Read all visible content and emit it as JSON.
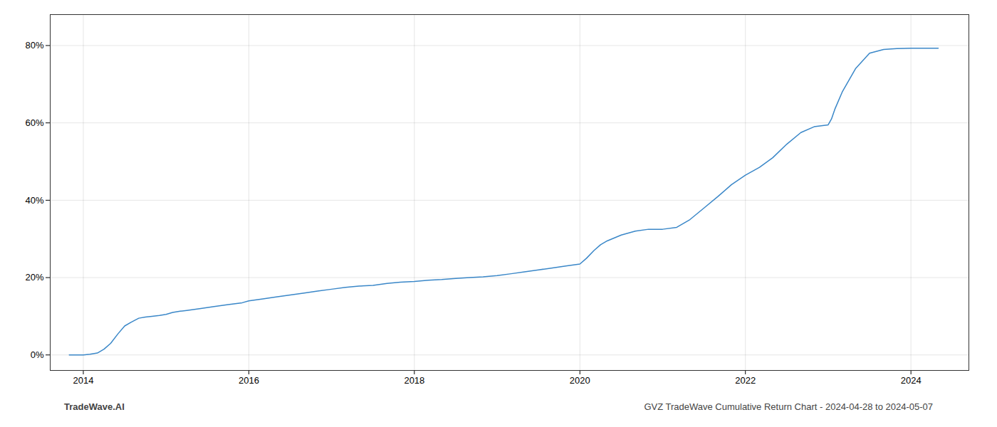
{
  "chart_data": {
    "type": "line",
    "x": [
      2013.83,
      2013.92,
      2014.0,
      2014.08,
      2014.17,
      2014.25,
      2014.33,
      2014.42,
      2014.5,
      2014.58,
      2014.67,
      2014.75,
      2014.83,
      2014.92,
      2015.0,
      2015.08,
      2015.17,
      2015.25,
      2015.42,
      2015.58,
      2015.75,
      2015.92,
      2016.0,
      2016.17,
      2016.33,
      2016.5,
      2016.67,
      2016.83,
      2017.0,
      2017.17,
      2017.33,
      2017.5,
      2017.67,
      2017.83,
      2018.0,
      2018.17,
      2018.33,
      2018.5,
      2018.67,
      2018.83,
      2019.0,
      2019.17,
      2019.33,
      2019.5,
      2019.67,
      2019.83,
      2020.0,
      2020.08,
      2020.17,
      2020.25,
      2020.33,
      2020.5,
      2020.67,
      2020.83,
      2021.0,
      2021.17,
      2021.33,
      2021.5,
      2021.67,
      2021.83,
      2022.0,
      2022.17,
      2022.33,
      2022.5,
      2022.67,
      2022.83,
      2023.0,
      2023.04,
      2023.08,
      2023.17,
      2023.33,
      2023.5,
      2023.67,
      2023.83,
      2024.0,
      2024.17,
      2024.33
    ],
    "values": [
      0.0,
      0.0,
      0.0,
      0.2,
      0.5,
      1.5,
      3.0,
      5.5,
      7.5,
      8.5,
      9.5,
      9.8,
      10.0,
      10.2,
      10.5,
      11.0,
      11.3,
      11.5,
      12.0,
      12.5,
      13.0,
      13.5,
      14.0,
      14.5,
      15.0,
      15.5,
      16.0,
      16.5,
      17.0,
      17.5,
      17.8,
      18.0,
      18.5,
      18.8,
      19.0,
      19.3,
      19.5,
      19.8,
      20.0,
      20.2,
      20.5,
      21.0,
      21.5,
      22.0,
      22.5,
      23.0,
      23.5,
      25.0,
      27.0,
      28.5,
      29.5,
      31.0,
      32.0,
      32.5,
      32.5,
      33.0,
      35.0,
      38.0,
      41.0,
      44.0,
      46.5,
      48.5,
      51.0,
      54.5,
      57.5,
      59.0,
      59.5,
      61.0,
      63.5,
      68.0,
      74.0,
      78.0,
      79.0,
      79.2,
      79.3,
      79.3,
      79.3
    ],
    "color": "#3a87c8",
    "xlim": [
      2013.6,
      2024.7
    ],
    "ylim": [
      -4,
      88
    ],
    "xticks": [
      2014,
      2016,
      2018,
      2020,
      2022,
      2024
    ],
    "yticks": [
      {
        "value": 0,
        "label": "0%"
      },
      {
        "value": 20,
        "label": "20%"
      },
      {
        "value": 40,
        "label": "40%"
      },
      {
        "value": 60,
        "label": "60%"
      },
      {
        "value": 80,
        "label": "80%"
      }
    ],
    "grid": true,
    "annotations": [
      "TradeWave.AI",
      "GVZ TradeWave Cumulative Return Chart - 2024-04-28 to 2024-05-07"
    ]
  }
}
